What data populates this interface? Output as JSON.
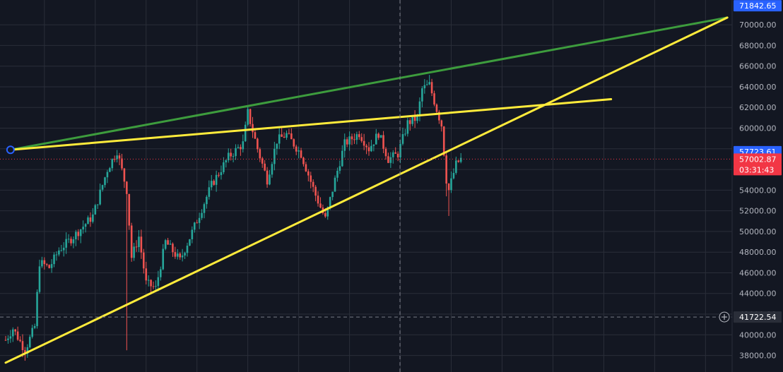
{
  "colors": {
    "background": "#131722",
    "grid": "#2a2e39",
    "axis_text": "#b2b5be",
    "candle_up": "#26a69a",
    "candle_down": "#ef5350",
    "trend_green": "#3d9c3d",
    "trend_yellow": "#ffeb3b",
    "tag_blue": "#2962ff",
    "tag_red": "#f23645",
    "tag_dark": "#2a2e39"
  },
  "chart_data": {
    "type": "candlestick",
    "ylim": [
      36400,
      72400
    ],
    "yticks": [
      "38000.00",
      "40000.00",
      "42000.00",
      "44000.00",
      "46000.00",
      "48000.00",
      "50000.00",
      "52000.00",
      "54000.00",
      "56000.00",
      "58000.00",
      "60000.00",
      "62000.00",
      "64000.00",
      "66000.00",
      "68000.00",
      "70000.00"
    ],
    "price_tags": [
      {
        "label": "71842.65",
        "value": 71842.65,
        "style": "blue"
      },
      {
        "label": "57723.61",
        "value": 57723.61,
        "style": "blue"
      },
      {
        "label": "57002.87",
        "value": 57002.87,
        "style": "red"
      },
      {
        "label": "03:31:43",
        "value": 56000,
        "style": "red"
      },
      {
        "label": "41722.54",
        "value": 41722.54,
        "style": "dark"
      }
    ],
    "crosshair_price": 41722.54,
    "last_price": 57002.87,
    "anchors": [
      {
        "t": 0,
        "p": 39500
      },
      {
        "t": 3,
        "p": 40600
      },
      {
        "t": 8,
        "p": 38500
      },
      {
        "t": 12,
        "p": 40800
      },
      {
        "t": 14,
        "p": 47000
      },
      {
        "t": 18,
        "p": 46500
      },
      {
        "t": 22,
        "p": 48200
      },
      {
        "t": 28,
        "p": 49500
      },
      {
        "t": 36,
        "p": 51500
      },
      {
        "t": 42,
        "p": 56000
      },
      {
        "t": 46,
        "p": 57800
      },
      {
        "t": 50,
        "p": 54000
      },
      {
        "t": 52,
        "p": 47500
      },
      {
        "t": 55,
        "p": 49500
      },
      {
        "t": 58,
        "p": 45000
      },
      {
        "t": 62,
        "p": 44500
      },
      {
        "t": 66,
        "p": 49000
      },
      {
        "t": 72,
        "p": 47200
      },
      {
        "t": 78,
        "p": 50500
      },
      {
        "t": 85,
        "p": 54500
      },
      {
        "t": 92,
        "p": 57200
      },
      {
        "t": 98,
        "p": 58500
      },
      {
        "t": 100,
        "p": 61500
      },
      {
        "t": 104,
        "p": 58000
      },
      {
        "t": 108,
        "p": 55000
      },
      {
        "t": 112,
        "p": 58800
      },
      {
        "t": 116,
        "p": 59400
      },
      {
        "t": 122,
        "p": 57500
      },
      {
        "t": 128,
        "p": 53500
      },
      {
        "t": 132,
        "p": 51200
      },
      {
        "t": 136,
        "p": 55000
      },
      {
        "t": 140,
        "p": 58500
      },
      {
        "t": 146,
        "p": 59500
      },
      {
        "t": 150,
        "p": 58000
      },
      {
        "t": 154,
        "p": 59500
      },
      {
        "t": 158,
        "p": 57000
      },
      {
        "t": 162,
        "p": 57500
      },
      {
        "t": 166,
        "p": 60500
      },
      {
        "t": 170,
        "p": 61000
      },
      {
        "t": 172,
        "p": 63800
      },
      {
        "t": 175,
        "p": 64200
      },
      {
        "t": 178,
        "p": 61800
      },
      {
        "t": 180,
        "p": 60300
      },
      {
        "t": 182,
        "p": 55000
      },
      {
        "t": 183,
        "p": 54000
      },
      {
        "t": 186,
        "p": 56500
      },
      {
        "t": 188,
        "p": 57000
      }
    ],
    "wick_spikes": [
      {
        "t": 50,
        "low": 38500
      },
      {
        "t": 183,
        "low": 51500
      },
      {
        "t": 182,
        "low": 53400
      }
    ],
    "trendlines": [
      {
        "name": "green-upper",
        "color": "green",
        "from": {
          "t": 2,
          "p": 57900
        },
        "to": {
          "t": 298,
          "p": 70700
        }
      },
      {
        "name": "yellow-resistance",
        "color": "yellow",
        "from": {
          "t": 2,
          "p": 57900
        },
        "to": {
          "t": 250,
          "p": 62800
        }
      },
      {
        "name": "yellow-support",
        "color": "yellow",
        "from": {
          "t": 0,
          "p": 37300
        },
        "to": {
          "t": 298,
          "p": 70700
        }
      }
    ],
    "candle_t_max": 188,
    "t_span": 300,
    "grid_x_t": [
      16,
      37,
      58,
      79,
      100,
      121,
      142,
      163,
      184,
      205,
      226,
      247,
      268,
      289
    ]
  }
}
